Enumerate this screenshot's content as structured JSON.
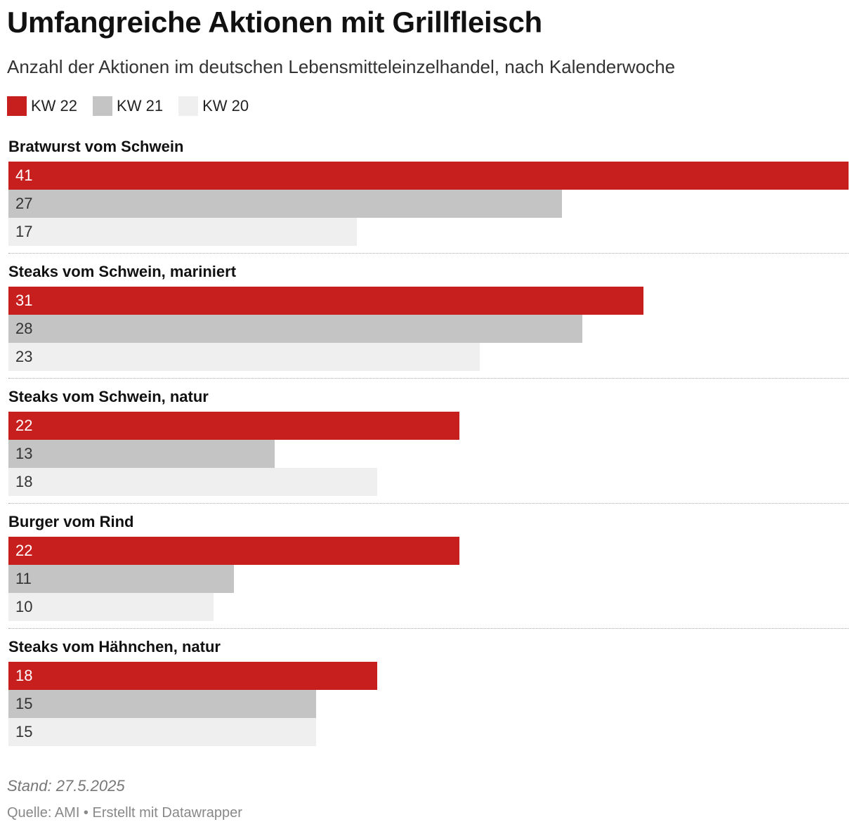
{
  "header": {
    "title": "Umfangreiche Aktionen mit Grillfleisch",
    "subtitle": "Anzahl der Aktionen im deutschen Lebensmitteleinzelhandel, nach Kalenderwoche"
  },
  "colors": {
    "kw22": "#c71e1e",
    "kw21": "#c4c4c4",
    "kw20": "#efefef",
    "label_on_dark": "#ffffff",
    "label_on_light": "#333333"
  },
  "chart_data": {
    "type": "bar",
    "orientation": "horizontal",
    "categories": [
      "Bratwurst vom Schwein",
      "Steaks vom Schwein, mariniert",
      "Steaks vom Schwein, natur",
      "Burger vom Rind",
      "Steaks vom Hähnchen, natur"
    ],
    "series": [
      {
        "name": "KW 22",
        "values": [
          41,
          31,
          22,
          22,
          18
        ]
      },
      {
        "name": "KW 21",
        "values": [
          27,
          28,
          13,
          11,
          15
        ]
      },
      {
        "name": "KW 20",
        "values": [
          17,
          23,
          18,
          10,
          15
        ]
      }
    ],
    "xlim": [
      0,
      41
    ],
    "grid": false,
    "legend_position": "top-left",
    "data_labels": true
  },
  "footer": {
    "stand": "Stand: 27.5.2025",
    "source": "Quelle: AMI • Erstellt mit Datawrapper"
  }
}
